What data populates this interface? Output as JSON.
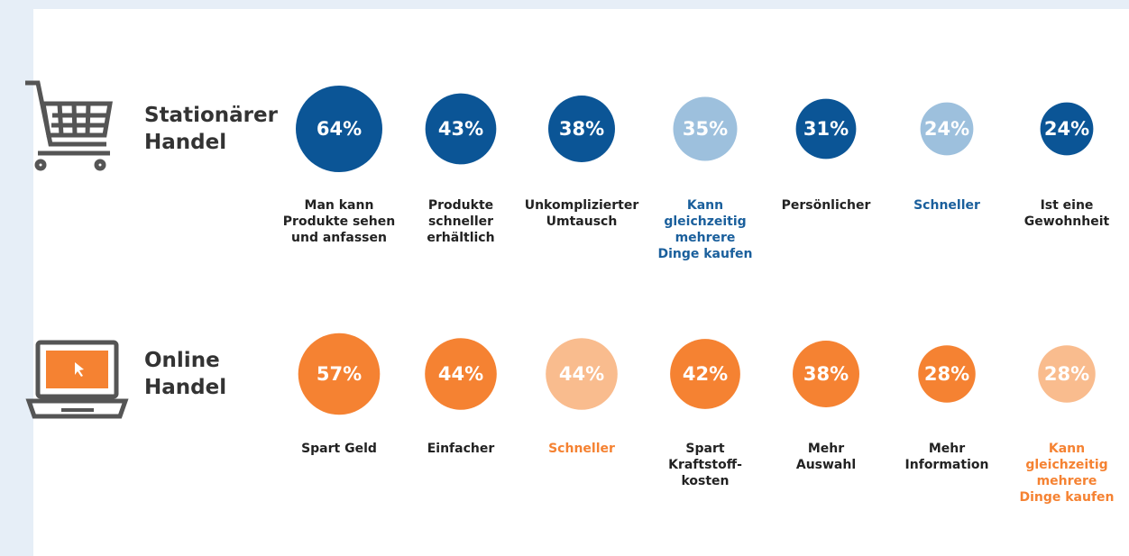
{
  "sections": [
    {
      "title_lines": [
        "Stationärer",
        "Handel"
      ],
      "categories": [
        [
          "Man kann",
          "Produkte sehen",
          "und anfassen"
        ],
        [
          "Produkte",
          "schneller",
          "erhältlich"
        ],
        [
          "Unkomplizierter",
          "Umtausch"
        ],
        [
          "Kann",
          "gleichzeitig",
          "mehrere",
          "Dinge kaufen"
        ],
        [
          "Persönlicher"
        ],
        [
          "Schneller"
        ],
        [
          "Ist eine",
          "Gewohnheit"
        ]
      ],
      "values": [
        64,
        43,
        38,
        35,
        31,
        24,
        24
      ],
      "value_labels": [
        "64%",
        "43%",
        "38%",
        "35%",
        "31%",
        "24%",
        "24%"
      ],
      "colors": [
        "#0b5596",
        "#0b5596",
        "#0b5596",
        "#9dc0dd",
        "#0b5596",
        "#9dc0dd",
        "#0b5596"
      ],
      "label_colors": [
        "#222222",
        "#222222",
        "#222222",
        "#1a5f9c",
        "#222222",
        "#1a5f9c",
        "#222222"
      ]
    },
    {
      "title_lines": [
        "Online",
        "Handel"
      ],
      "categories": [
        [
          "Spart Geld"
        ],
        [
          "Einfacher"
        ],
        [
          "Schneller"
        ],
        [
          "Spart",
          "Kraftstoff-",
          "kosten"
        ],
        [
          "Mehr",
          "Auswahl"
        ],
        [
          "Mehr",
          "Information"
        ],
        [
          "Kann",
          "gleichzeitig",
          "mehrere",
          "Dinge kaufen"
        ]
      ],
      "values": [
        57,
        44,
        44,
        42,
        38,
        28,
        28
      ],
      "value_labels": [
        "57%",
        "44%",
        "44%",
        "42%",
        "38%",
        "28%",
        "28%"
      ],
      "colors": [
        "#f58232",
        "#f58232",
        "#f9bc8e",
        "#f58232",
        "#f58232",
        "#f58232",
        "#f9bc8e"
      ],
      "label_colors": [
        "#222222",
        "#222222",
        "#f58232",
        "#222222",
        "#222222",
        "#222222",
        "#f58232"
      ]
    }
  ]
}
